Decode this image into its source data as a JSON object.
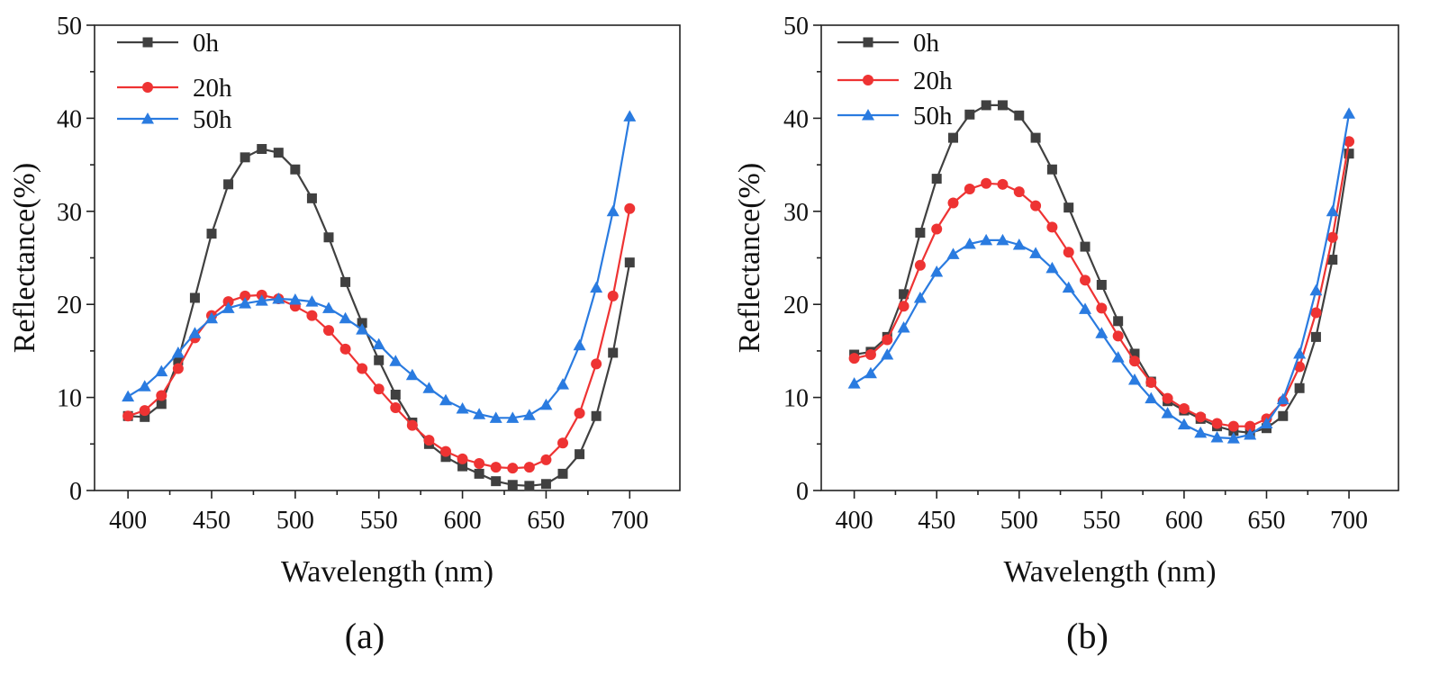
{
  "chart_data": [
    {
      "type": "line",
      "panel_label": "(a)",
      "xlabel": "Wavelength (nm)",
      "ylabel": "Reflectance(%)",
      "xlim": [
        380,
        730
      ],
      "ylim": [
        0,
        50
      ],
      "xticks": [
        400,
        450,
        500,
        550,
        600,
        650,
        700
      ],
      "yticks": [
        0,
        10,
        20,
        30,
        40,
        50
      ],
      "legend_position": "top-left",
      "x": [
        400,
        410,
        420,
        430,
        440,
        450,
        460,
        470,
        480,
        490,
        500,
        510,
        520,
        530,
        540,
        550,
        560,
        570,
        580,
        590,
        600,
        610,
        620,
        630,
        640,
        650,
        660,
        670,
        680,
        690,
        700
      ],
      "series": [
        {
          "name": "0h",
          "color": "#404040",
          "marker": "square",
          "values": [
            8.0,
            7.9,
            9.3,
            14.0,
            20.7,
            27.6,
            32.9,
            35.8,
            36.7,
            36.3,
            34.5,
            31.4,
            27.2,
            22.4,
            18.0,
            14.0,
            10.3,
            7.3,
            5.0,
            3.6,
            2.6,
            1.8,
            1.0,
            0.6,
            0.5,
            0.7,
            1.8,
            3.9,
            8.0,
            14.8,
            24.5
          ]
        },
        {
          "name": "20h",
          "color": "#ee3333",
          "marker": "circle",
          "values": [
            8.0,
            8.6,
            10.2,
            13.1,
            16.4,
            18.8,
            20.3,
            20.9,
            21.0,
            20.6,
            19.8,
            18.8,
            17.2,
            15.2,
            13.1,
            10.9,
            8.9,
            7.0,
            5.4,
            4.2,
            3.4,
            2.9,
            2.5,
            2.4,
            2.5,
            3.3,
            5.1,
            8.3,
            13.6,
            20.9,
            30.3
          ]
        },
        {
          "name": "50h",
          "color": "#2a7be0",
          "marker": "triangle",
          "values": [
            10.1,
            11.2,
            12.8,
            14.8,
            16.9,
            18.5,
            19.6,
            20.1,
            20.4,
            20.6,
            20.5,
            20.3,
            19.6,
            18.5,
            17.3,
            15.7,
            13.9,
            12.4,
            11.0,
            9.7,
            8.8,
            8.2,
            7.8,
            7.8,
            8.1,
            9.2,
            11.4,
            15.6,
            21.8,
            30.0,
            40.2
          ]
        }
      ]
    },
    {
      "type": "line",
      "panel_label": "(b)",
      "xlabel": "Wavelength (nm)",
      "ylabel": "Reflectance(%)",
      "xlim": [
        380,
        730
      ],
      "ylim": [
        0,
        50
      ],
      "xticks": [
        400,
        450,
        500,
        550,
        600,
        650,
        700
      ],
      "yticks": [
        0,
        10,
        20,
        30,
        40,
        50
      ],
      "legend_position": "top-left",
      "x": [
        400,
        410,
        420,
        430,
        440,
        450,
        460,
        470,
        480,
        490,
        500,
        510,
        520,
        530,
        540,
        550,
        560,
        570,
        580,
        590,
        600,
        610,
        620,
        630,
        640,
        650,
        660,
        670,
        680,
        690,
        700
      ],
      "series": [
        {
          "name": "0h",
          "color": "#404040",
          "marker": "square",
          "values": [
            14.6,
            14.9,
            16.5,
            21.1,
            27.7,
            33.5,
            37.9,
            40.4,
            41.4,
            41.4,
            40.3,
            37.9,
            34.5,
            30.4,
            26.2,
            22.1,
            18.2,
            14.7,
            11.7,
            9.6,
            8.6,
            7.7,
            6.9,
            6.4,
            6.2,
            6.7,
            8.0,
            11.0,
            16.5,
            24.8,
            36.2
          ]
        },
        {
          "name": "20h",
          "color": "#ee3333",
          "marker": "circle",
          "values": [
            14.2,
            14.6,
            16.2,
            19.8,
            24.2,
            28.1,
            30.9,
            32.4,
            33.0,
            32.9,
            32.1,
            30.6,
            28.3,
            25.6,
            22.6,
            19.6,
            16.6,
            13.9,
            11.6,
            9.9,
            8.8,
            7.9,
            7.2,
            6.9,
            6.9,
            7.7,
            9.6,
            13.3,
            19.1,
            27.2,
            37.5
          ]
        },
        {
          "name": "50h",
          "color": "#2a7be0",
          "marker": "triangle",
          "values": [
            11.5,
            12.6,
            14.6,
            17.5,
            20.7,
            23.5,
            25.4,
            26.5,
            26.9,
            26.9,
            26.4,
            25.5,
            23.9,
            21.8,
            19.5,
            16.9,
            14.3,
            11.9,
            9.9,
            8.3,
            7.1,
            6.2,
            5.7,
            5.6,
            6.0,
            7.2,
            9.8,
            14.7,
            21.5,
            30.0,
            40.5
          ]
        }
      ]
    }
  ]
}
